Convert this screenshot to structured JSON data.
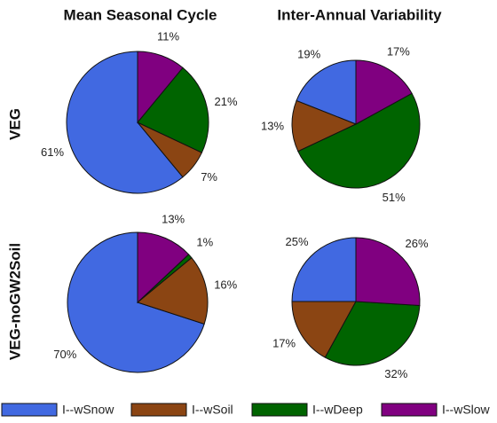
{
  "column_titles": [
    "Mean Seasonal Cycle",
    "Inter-Annual Variability"
  ],
  "row_labels": [
    "VEG",
    "VEG-noGW2Soil"
  ],
  "chart_data": [
    {
      "type": "pie",
      "categories": [
        "I--wSnow",
        "I--wSoil",
        "I--wDeep",
        "I--wSlow"
      ],
      "colors": [
        "#4169e1",
        "#8b4513",
        "#006400",
        "#800080"
      ],
      "values": [
        61,
        7,
        21,
        11
      ],
      "value_labels": [
        "61%",
        "7%",
        "21%",
        "11%"
      ]
    },
    {
      "type": "pie",
      "categories": [
        "I--wSnow",
        "I--wSoil",
        "I--wDeep",
        "I--wSlow"
      ],
      "colors": [
        "#4169e1",
        "#8b4513",
        "#006400",
        "#800080"
      ],
      "values": [
        19,
        13,
        51,
        17
      ],
      "value_labels": [
        "19%",
        "13%",
        "51%",
        "17%"
      ]
    },
    {
      "type": "pie",
      "categories": [
        "I--wSnow",
        "I--wSoil",
        "I--wDeep",
        "I--wSlow"
      ],
      "colors": [
        "#4169e1",
        "#8b4513",
        "#006400",
        "#800080"
      ],
      "values": [
        70,
        16,
        1,
        13
      ],
      "value_labels": [
        "70%",
        "16%",
        "1%",
        "13%"
      ]
    },
    {
      "type": "pie",
      "categories": [
        "I--wSnow",
        "I--wSoil",
        "I--wDeep",
        "I--wSlow"
      ],
      "colors": [
        "#4169e1",
        "#8b4513",
        "#006400",
        "#800080"
      ],
      "values": [
        25,
        17,
        32,
        26
      ],
      "value_labels": [
        "25%",
        "17%",
        "32%",
        "26%"
      ]
    }
  ]
}
